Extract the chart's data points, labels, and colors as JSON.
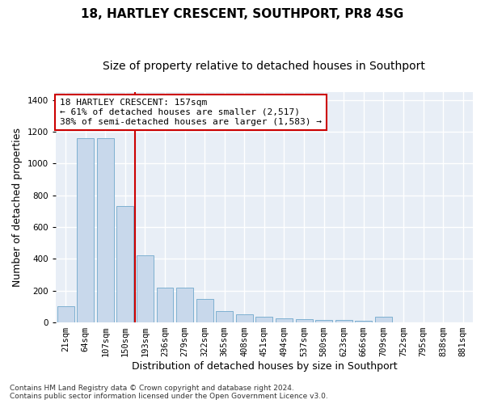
{
  "title": "18, HARTLEY CRESCENT, SOUTHPORT, PR8 4SG",
  "subtitle": "Size of property relative to detached houses in Southport",
  "xlabel": "Distribution of detached houses by size in Southport",
  "ylabel": "Number of detached properties",
  "categories": [
    "21sqm",
    "64sqm",
    "107sqm",
    "150sqm",
    "193sqm",
    "236sqm",
    "279sqm",
    "322sqm",
    "365sqm",
    "408sqm",
    "451sqm",
    "494sqm",
    "537sqm",
    "580sqm",
    "623sqm",
    "666sqm",
    "709sqm",
    "752sqm",
    "795sqm",
    "838sqm",
    "881sqm"
  ],
  "values": [
    100,
    1160,
    1160,
    730,
    420,
    220,
    220,
    148,
    70,
    53,
    35,
    25,
    20,
    17,
    15,
    12,
    35,
    0,
    0,
    0,
    0
  ],
  "bar_color": "#c8d8eb",
  "bar_edgecolor": "#6fa8cc",
  "highlight_index": 3,
  "highlight_line_color": "#cc0000",
  "annotation_text": "18 HARTLEY CRESCENT: 157sqm\n← 61% of detached houses are smaller (2,517)\n38% of semi-detached houses are larger (1,583) →",
  "annotation_box_facecolor": "#ffffff",
  "annotation_box_edgecolor": "#cc0000",
  "ylim": [
    0,
    1450
  ],
  "yticks": [
    0,
    200,
    400,
    600,
    800,
    1000,
    1200,
    1400
  ],
  "background_color": "#e8eef6",
  "grid_color": "#ffffff",
  "footer_text": "Contains HM Land Registry data © Crown copyright and database right 2024.\nContains public sector information licensed under the Open Government Licence v3.0.",
  "title_fontsize": 11,
  "subtitle_fontsize": 10,
  "xlabel_fontsize": 9,
  "ylabel_fontsize": 9,
  "tick_fontsize": 7.5,
  "ann_fontsize": 8
}
